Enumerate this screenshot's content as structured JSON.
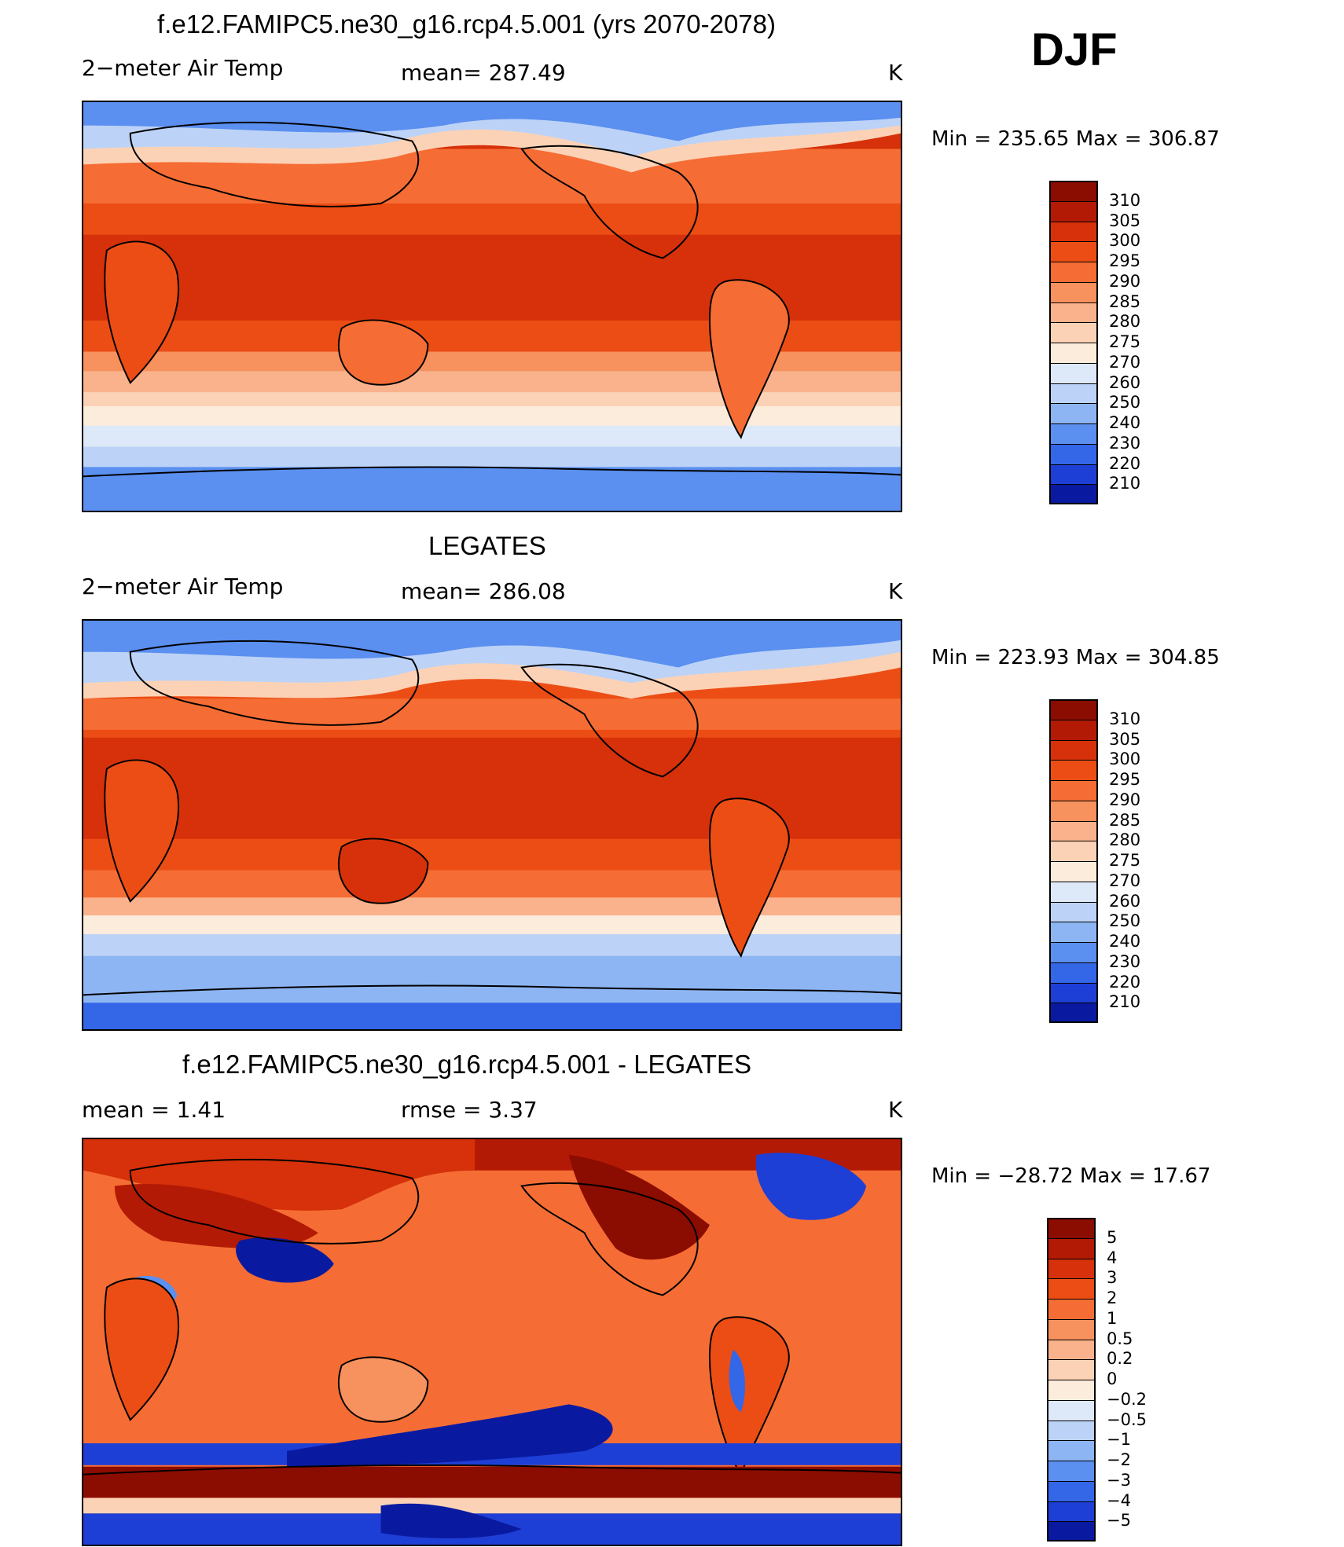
{
  "season": "DJF",
  "panels": [
    {
      "title": "f.e12.FAMIPC5.ne30_g16.rcp4.5.001 (yrs 2070-2078)",
      "left_label": "2−meter Air Temp",
      "center_label": "mean=  287.49",
      "units": "K",
      "minmax": "Min  =  235.65  Max  =  306.87",
      "colorbar_labels": [
        "310",
        "305",
        "300",
        "295",
        "290",
        "285",
        "280",
        "275",
        "270",
        "260",
        "250",
        "240",
        "230",
        "220",
        "210"
      ],
      "colorbar_colors": [
        "#8b0c00",
        "#b31a05",
        "#d6310a",
        "#ec4d15",
        "#f56d34",
        "#f7915e",
        "#f9b28c",
        "#fcd2b6",
        "#fcecdc",
        "#dde8f8",
        "#bcd3f7",
        "#8db5f3",
        "#5b8ff0",
        "#3466e8",
        "#1e3fd6",
        "#0a1aa0"
      ]
    },
    {
      "title": "LEGATES",
      "left_label": "2−meter Air Temp",
      "center_label": "mean=  286.08",
      "units": "K",
      "minmax": "Min  =  223.93  Max  =  304.85",
      "colorbar_labels": [
        "310",
        "305",
        "300",
        "295",
        "290",
        "285",
        "280",
        "275",
        "270",
        "260",
        "250",
        "240",
        "230",
        "220",
        "210"
      ],
      "colorbar_colors": [
        "#8b0c00",
        "#b31a05",
        "#d6310a",
        "#ec4d15",
        "#f56d34",
        "#f7915e",
        "#f9b28c",
        "#fcd2b6",
        "#fcecdc",
        "#dde8f8",
        "#bcd3f7",
        "#8db5f3",
        "#5b8ff0",
        "#3466e8",
        "#1e3fd6",
        "#0a1aa0"
      ]
    },
    {
      "title": "f.e12.FAMIPC5.ne30_g16.rcp4.5.001 - LEGATES",
      "left_label": "mean =      1.41",
      "center_label": "rmse  =      3.37",
      "units": "K",
      "minmax": "Min  =  −28.72  Max  =    17.67",
      "colorbar_labels": [
        "5",
        "4",
        "3",
        "2",
        "1",
        "0.5",
        "0.2",
        "0",
        "−0.2",
        "−0.5",
        "−1",
        "−2",
        "−3",
        "−4",
        "−5"
      ],
      "colorbar_colors": [
        "#8b0c00",
        "#b31a05",
        "#d6310a",
        "#ec4d15",
        "#f56d34",
        "#f7915e",
        "#f9b28c",
        "#fcd2b6",
        "#fcecdc",
        "#dde8f8",
        "#bcd3f7",
        "#8db5f3",
        "#5b8ff0",
        "#3466e8",
        "#1e3fd6",
        "#0a1aa0"
      ]
    }
  ]
}
